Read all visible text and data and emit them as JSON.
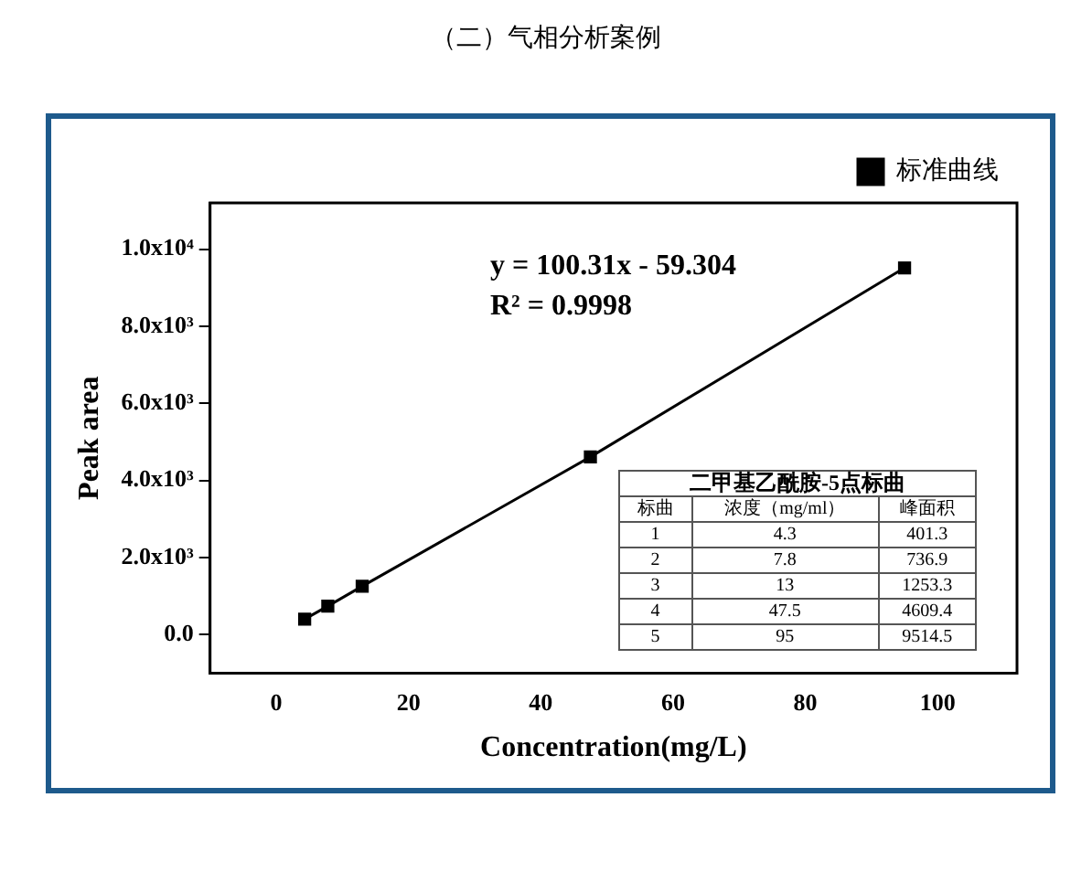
{
  "chart_data": {
    "type": "line",
    "title": "（二）气相分析案例",
    "xlabel": "Concentration(mg/L)",
    "ylabel": "Peak area",
    "x": [
      4.3,
      7.8,
      13,
      47.5,
      95
    ],
    "series": [
      {
        "name": "标准曲线",
        "color": "#000000",
        "values": [
          401.3,
          736.9,
          1253.3,
          4609.4,
          9514.5
        ]
      }
    ],
    "xlim": [
      -10,
      112
    ],
    "xticks": [
      0,
      20,
      40,
      60,
      80,
      100
    ],
    "ylim": [
      -1000,
      11200
    ],
    "yticks": [
      {
        "value": 0,
        "label": "0.0"
      },
      {
        "value": 2000,
        "label": "2.0x10³"
      },
      {
        "value": 4000,
        "label": "4.0x10³"
      },
      {
        "value": 6000,
        "label": "6.0x10³"
      },
      {
        "value": 8000,
        "label": "8.0x10³"
      },
      {
        "value": 10000,
        "label": "1.0x10⁴"
      }
    ],
    "annotations": [
      "y = 100.31x - 59.304",
      "R² = 0.9998",
      "二甲基乙酰胺-5点标曲",
      "标曲",
      "浓度（mg/ml）",
      "峰面积",
      "1",
      "4.3",
      "401.3",
      "2",
      "7.8",
      "736.9",
      "3",
      "13",
      "1253.3",
      "4",
      "47.5",
      "4609.4",
      "5",
      "95",
      "9514.5"
    ],
    "grid": false,
    "legend": "top right",
    "marker": "square",
    "line_style": "solid"
  }
}
